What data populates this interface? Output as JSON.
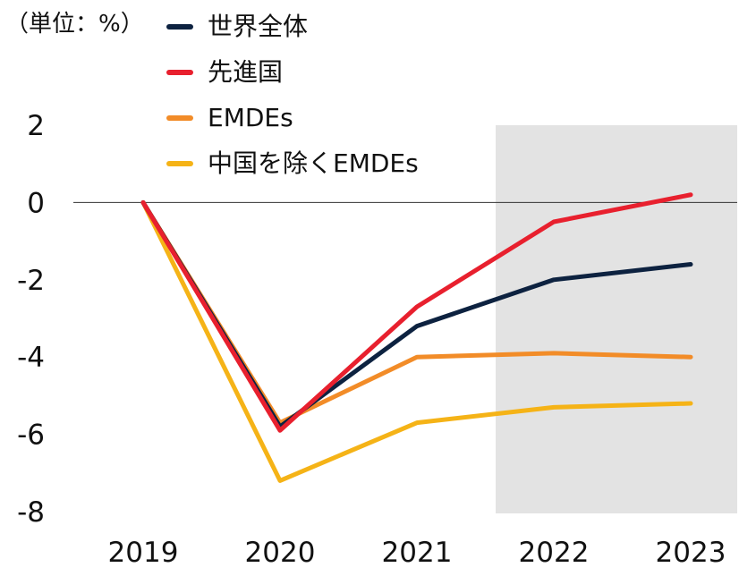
{
  "chart_data": {
    "type": "line",
    "unit_label": "（単位：%）",
    "categories": [
      "2019",
      "2020",
      "2021",
      "2022",
      "2023"
    ],
    "ylim": [
      -8,
      2
    ],
    "yticks": [
      "2",
      "0",
      "-2",
      "-4",
      "-6",
      "-8"
    ],
    "ytick_values": [
      2,
      0,
      -2,
      -4,
      -6,
      -8
    ],
    "shaded_range": [
      "2022",
      "2023"
    ],
    "zero_line": true,
    "series": [
      {
        "name": "世界全体",
        "color": "#0d2240",
        "values": [
          0,
          -5.8,
          -3.2,
          -2.0,
          -1.6
        ]
      },
      {
        "name": "先進国",
        "color": "#e8202e",
        "values": [
          0,
          -5.9,
          -2.7,
          -0.5,
          0.2
        ]
      },
      {
        "name": "EMDEs",
        "color": "#f28c28",
        "values": [
          0,
          -5.7,
          -4.0,
          -3.9,
          -4.0
        ]
      },
      {
        "name": "中国を除くEMDEs",
        "color": "#f5b317",
        "values": [
          0,
          -7.2,
          -5.7,
          -5.3,
          -5.2
        ]
      }
    ],
    "legend_position": "top-left"
  }
}
